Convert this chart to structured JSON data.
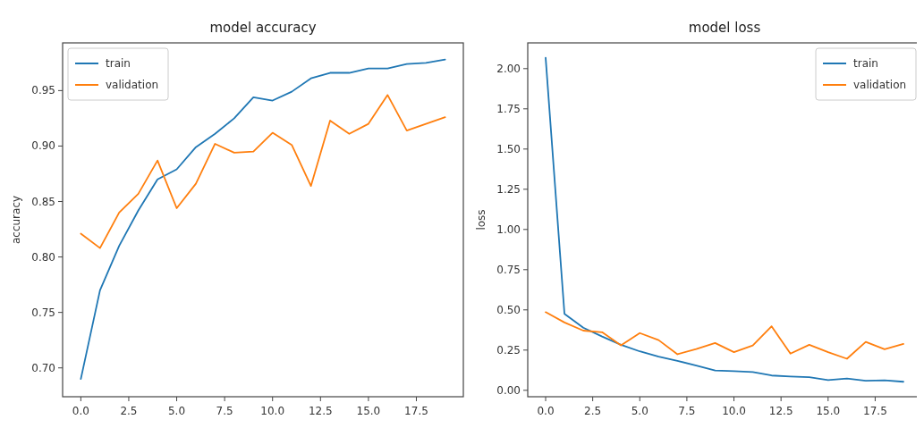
{
  "chart_data": [
    {
      "type": "line",
      "title": "model accuracy",
      "ylabel": "accuracy",
      "x": [
        0,
        1,
        2,
        3,
        4,
        5,
        6,
        7,
        8,
        9,
        10,
        11,
        12,
        13,
        14,
        15,
        16,
        17,
        18,
        19
      ],
      "xlim": [
        -0.95,
        19.95
      ],
      "xticks": [
        {
          "value": 0,
          "label": "0.0"
        },
        {
          "value": 2.5,
          "label": "2.5"
        },
        {
          "value": 5,
          "label": "5.0"
        },
        {
          "value": 7.5,
          "label": "7.5"
        },
        {
          "value": 10,
          "label": "10.0"
        },
        {
          "value": 12.5,
          "label": "12.5"
        },
        {
          "value": 15,
          "label": "15.0"
        },
        {
          "value": 17.5,
          "label": "17.5"
        }
      ],
      "ylim": [
        0.674,
        0.993
      ],
      "yticks": [
        {
          "value": 0.7,
          "label": "0.70"
        },
        {
          "value": 0.75,
          "label": "0.75"
        },
        {
          "value": 0.8,
          "label": "0.80"
        },
        {
          "value": 0.85,
          "label": "0.85"
        },
        {
          "value": 0.9,
          "label": "0.90"
        },
        {
          "value": 0.95,
          "label": "0.95"
        }
      ],
      "legend": "top left",
      "grid": false,
      "series": [
        {
          "name": "train",
          "color": "#1f77b4",
          "values": [
            0.69,
            0.77,
            0.81,
            0.842,
            0.87,
            0.879,
            0.899,
            0.911,
            0.925,
            0.944,
            0.941,
            0.949,
            0.961,
            0.966,
            0.966,
            0.97,
            0.97,
            0.974,
            0.975,
            0.978
          ]
        },
        {
          "name": "validation",
          "color": "#ff7f0e",
          "values": [
            0.821,
            0.808,
            0.84,
            0.857,
            0.887,
            0.844,
            0.866,
            0.902,
            0.894,
            0.895,
            0.912,
            0.901,
            0.864,
            0.923,
            0.911,
            0.92,
            0.946,
            0.914,
            0.92,
            0.926
          ]
        }
      ]
    },
    {
      "type": "line",
      "title": "model loss",
      "ylabel": "loss",
      "x": [
        0,
        1,
        2,
        3,
        4,
        5,
        6,
        7,
        8,
        9,
        10,
        11,
        12,
        13,
        14,
        15,
        16,
        17,
        18,
        19
      ],
      "xlim": [
        -0.95,
        19.95
      ],
      "xticks": [
        {
          "value": 0,
          "label": "0.0"
        },
        {
          "value": 2.5,
          "label": "2.5"
        },
        {
          "value": 5,
          "label": "5.0"
        },
        {
          "value": 7.5,
          "label": "7.5"
        },
        {
          "value": 10,
          "label": "10.0"
        },
        {
          "value": 12.5,
          "label": "12.5"
        },
        {
          "value": 15,
          "label": "15.0"
        },
        {
          "value": 17.5,
          "label": "17.5"
        }
      ],
      "ylim": [
        -0.04,
        2.16
      ],
      "yticks": [
        {
          "value": 0,
          "label": "0.00"
        },
        {
          "value": 0.25,
          "label": "0.25"
        },
        {
          "value": 0.5,
          "label": "0.50"
        },
        {
          "value": 0.75,
          "label": "0.75"
        },
        {
          "value": 1,
          "label": "1.00"
        },
        {
          "value": 1.25,
          "label": "1.25"
        },
        {
          "value": 1.5,
          "label": "1.50"
        },
        {
          "value": 1.75,
          "label": "1.75"
        },
        {
          "value": 2,
          "label": "2.00"
        }
      ],
      "legend": "top right",
      "grid": false,
      "series": [
        {
          "name": "train",
          "color": "#1f77b4",
          "values": [
            2.068,
            0.475,
            0.389,
            0.334,
            0.283,
            0.242,
            0.209,
            0.183,
            0.154,
            0.123,
            0.119,
            0.114,
            0.092,
            0.086,
            0.081,
            0.064,
            0.073,
            0.059,
            0.062,
            0.053
          ]
        },
        {
          "name": "validation",
          "color": "#ff7f0e",
          "values": [
            0.486,
            0.422,
            0.371,
            0.361,
            0.279,
            0.356,
            0.312,
            0.224,
            0.257,
            0.294,
            0.237,
            0.279,
            0.398,
            0.228,
            0.283,
            0.237,
            0.196,
            0.301,
            0.255,
            0.288
          ]
        }
      ]
    }
  ]
}
